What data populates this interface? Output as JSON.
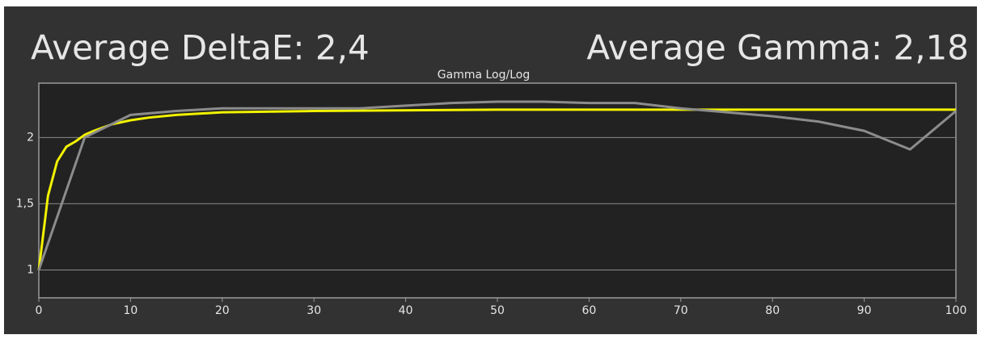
{
  "chart_data": {
    "type": "line",
    "title": "Average DeltaE: 2,4",
    "title_right": "Average Gamma: 2,18",
    "subtitle": "Gamma Log/Log",
    "xlim": [
      0,
      100
    ],
    "xticks": [
      0,
      10,
      20,
      30,
      40,
      50,
      60,
      70,
      80,
      90,
      100
    ],
    "ylim": [
      0.79,
      2.41
    ],
    "yticks": [
      1,
      {
        "value": 1.5,
        "label": "1,5"
      },
      2
    ],
    "grid": true,
    "series": [
      {
        "color": "#f2f200",
        "x": [
          0,
          1,
          2,
          3,
          4,
          5,
          6,
          8,
          10,
          12,
          15,
          20,
          30,
          50,
          100
        ],
        "values": [
          1.0,
          1.56,
          1.82,
          1.93,
          1.97,
          2.02,
          2.05,
          2.1,
          2.13,
          2.15,
          2.17,
          2.19,
          2.2,
          2.21,
          2.21
        ]
      },
      {
        "color": "#8c8c8c",
        "x": [
          0,
          5,
          10,
          15,
          20,
          25,
          30,
          35,
          40,
          45,
          50,
          55,
          60,
          65,
          70,
          75,
          80,
          85,
          90,
          95,
          100
        ],
        "values": [
          1.0,
          2.0,
          2.17,
          2.2,
          2.22,
          2.22,
          2.22,
          2.22,
          2.24,
          2.26,
          2.27,
          2.27,
          2.26,
          2.26,
          2.22,
          2.19,
          2.16,
          2.12,
          2.05,
          1.91,
          2.2
        ]
      }
    ]
  }
}
